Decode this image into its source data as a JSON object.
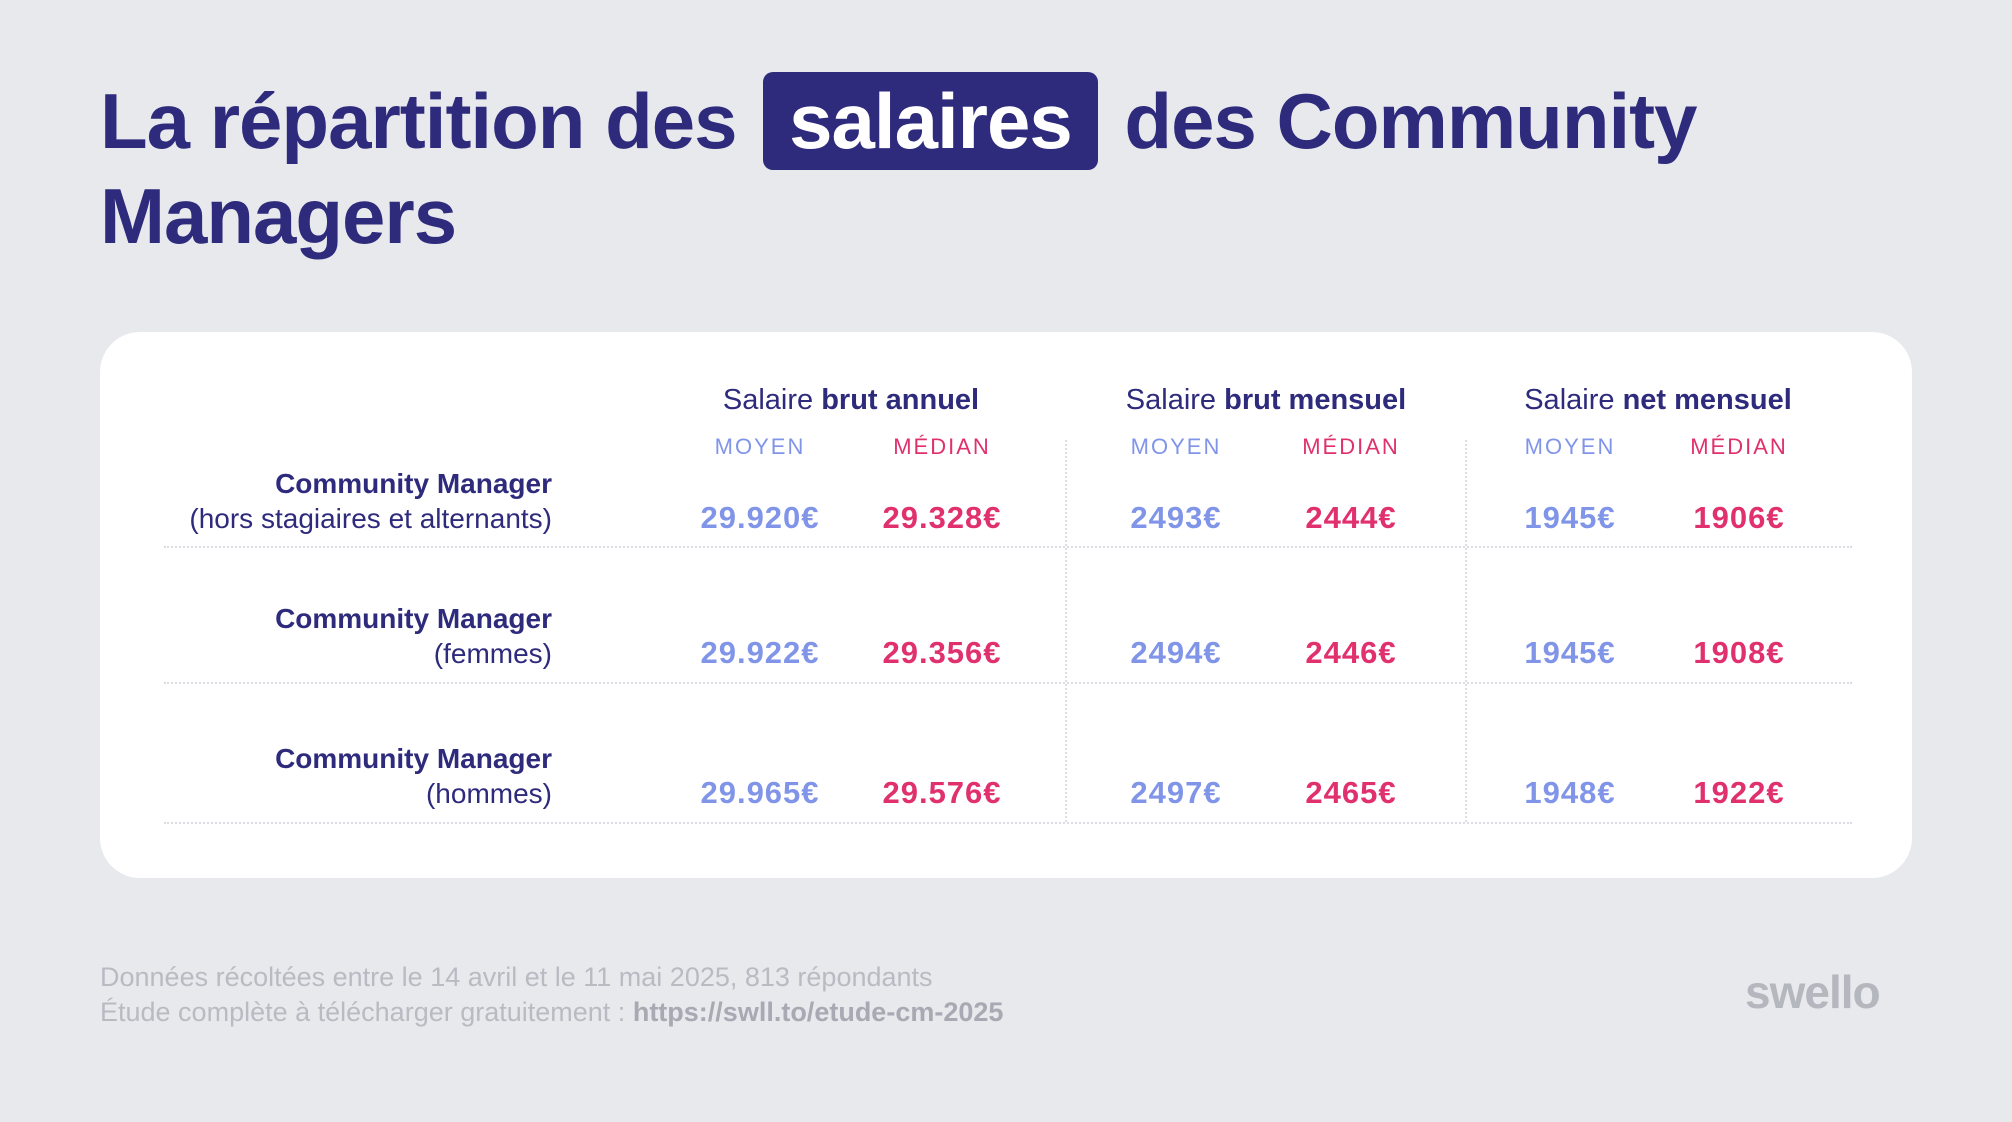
{
  "title": {
    "before": "La répartition des",
    "highlight": "salaires",
    "after": "des Community",
    "line2": "Managers"
  },
  "columns": [
    {
      "prefix": "Salaire",
      "bold": "brut annuel"
    },
    {
      "prefix": "Salaire",
      "bold": "brut mensuel"
    },
    {
      "prefix": "Salaire",
      "bold": "net mensuel"
    }
  ],
  "subheaders": {
    "moyen": "MOYEN",
    "median": "MÉDIAN"
  },
  "rows": [
    {
      "title": "Community Manager",
      "subtitle": "(hors stagiaires et alternants)",
      "values": [
        "29.920€",
        "29.328€",
        "2493€",
        "2444€",
        "1945€",
        "1906€"
      ]
    },
    {
      "title": "Community Manager",
      "subtitle": "(femmes)",
      "values": [
        "29.922€",
        "29.356€",
        "2494€",
        "2446€",
        "1945€",
        "1908€"
      ]
    },
    {
      "title": "Community Manager",
      "subtitle": "(hommes)",
      "values": [
        "29.965€",
        "29.576€",
        "2497€",
        "2465€",
        "1948€",
        "1922€"
      ]
    }
  ],
  "footer": {
    "line1": "Données récoltées entre le 14 avril et le 11 mai 2025, 813 répondants",
    "line2_prefix": "Étude complète à télécharger gratuitement :",
    "link": "https://swll.to/etude-cm-2025"
  },
  "logo": "swello",
  "colors": {
    "primary": "#2e2a7c",
    "moyen": "#8094e8",
    "median": "#e0306d",
    "background": "#e8e9ed",
    "card": "#ffffff"
  }
}
